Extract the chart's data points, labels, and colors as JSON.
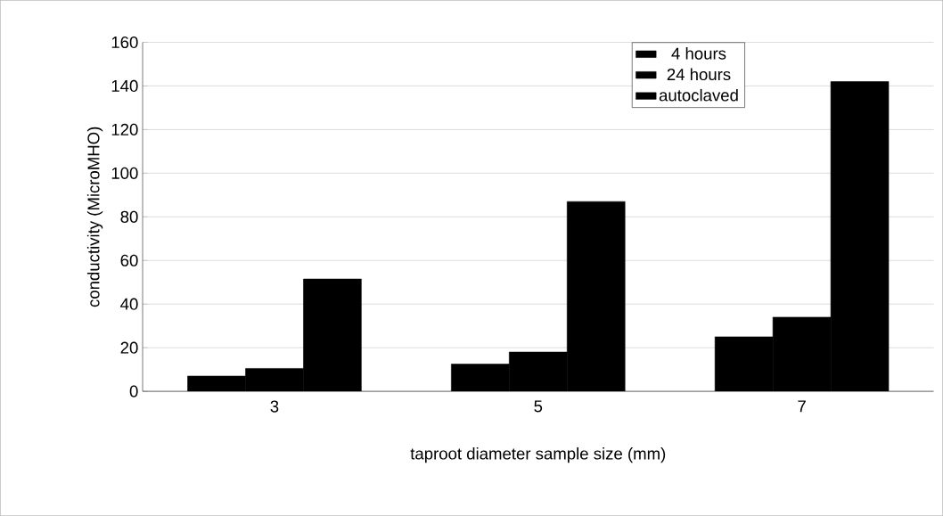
{
  "chart_data": {
    "type": "bar",
    "xlabel": "taproot diameter sample size (mm)",
    "ylabel": "conductivity (MicroMHO)",
    "categories": [
      "3",
      "5",
      "7"
    ],
    "series": [
      {
        "name": "4 hours",
        "color": "#000000",
        "values": [
          7,
          12.5,
          25
        ]
      },
      {
        "name": "24 hours",
        "color": "#000000",
        "values": [
          10.5,
          18,
          34
        ]
      },
      {
        "name": "autoclaved",
        "color": "#000000",
        "values": [
          51.5,
          87,
          142
        ]
      }
    ],
    "ylim": [
      0,
      160
    ],
    "yticks": [
      0,
      20,
      40,
      60,
      80,
      100,
      120,
      140,
      160
    ],
    "grid": "y",
    "legend": "top right"
  }
}
